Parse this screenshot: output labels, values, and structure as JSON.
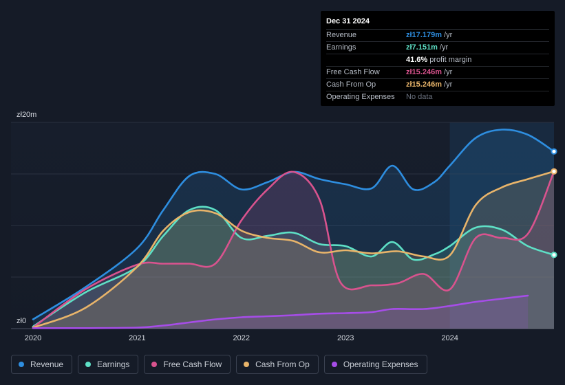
{
  "chart_data": {
    "type": "area",
    "y_axis": {
      "top_label": "zł20m",
      "bottom_label": "zł0",
      "ylim": [
        0,
        20
      ]
    },
    "x_axis": {
      "ticks": [
        "2020",
        "2021",
        "2022",
        "2023",
        "2024"
      ],
      "xlim": [
        2020.0,
        2025.0
      ]
    },
    "highlight_from": 2024.0,
    "series": [
      {
        "name": "Revenue",
        "color": "#2e8ee0",
        "points": [
          [
            2020.0,
            0.9
          ],
          [
            2020.5,
            4.0
          ],
          [
            2021.0,
            7.8
          ],
          [
            2021.25,
            11.5
          ],
          [
            2021.5,
            14.8
          ],
          [
            2021.75,
            15.0
          ],
          [
            2022.0,
            13.5
          ],
          [
            2022.25,
            14.2
          ],
          [
            2022.5,
            15.2
          ],
          [
            2022.75,
            14.5
          ],
          [
            2023.0,
            14.0
          ],
          [
            2023.25,
            13.6
          ],
          [
            2023.45,
            15.8
          ],
          [
            2023.65,
            13.5
          ],
          [
            2023.85,
            14.2
          ],
          [
            2024.0,
            15.8
          ],
          [
            2024.25,
            18.5
          ],
          [
            2024.5,
            19.3
          ],
          [
            2024.75,
            18.8
          ],
          [
            2025.0,
            17.179
          ]
        ]
      },
      {
        "name": "Earnings",
        "color": "#5ee0c6",
        "points": [
          [
            2020.0,
            0.2
          ],
          [
            2020.5,
            3.5
          ],
          [
            2021.0,
            6.0
          ],
          [
            2021.25,
            9.0
          ],
          [
            2021.5,
            11.5
          ],
          [
            2021.75,
            11.5
          ],
          [
            2022.0,
            8.8
          ],
          [
            2022.25,
            9.0
          ],
          [
            2022.5,
            9.3
          ],
          [
            2022.75,
            8.2
          ],
          [
            2023.0,
            8.0
          ],
          [
            2023.25,
            7.0
          ],
          [
            2023.45,
            8.4
          ],
          [
            2023.65,
            6.7
          ],
          [
            2023.85,
            7.2
          ],
          [
            2024.0,
            8.0
          ],
          [
            2024.25,
            9.8
          ],
          [
            2024.5,
            9.6
          ],
          [
            2024.75,
            8.0
          ],
          [
            2025.0,
            7.151
          ]
        ]
      },
      {
        "name": "Free Cash Flow",
        "color": "#d9538e",
        "points": [
          [
            2020.0,
            0.1
          ],
          [
            2020.5,
            3.8
          ],
          [
            2021.0,
            6.2
          ],
          [
            2021.25,
            6.3
          ],
          [
            2021.5,
            6.3
          ],
          [
            2021.75,
            6.3
          ],
          [
            2022.0,
            10.5
          ],
          [
            2022.25,
            13.5
          ],
          [
            2022.5,
            15.2
          ],
          [
            2022.75,
            12.5
          ],
          [
            2022.95,
            4.5
          ],
          [
            2023.25,
            4.2
          ],
          [
            2023.5,
            4.4
          ],
          [
            2023.75,
            5.3
          ],
          [
            2024.0,
            3.8
          ],
          [
            2024.25,
            8.8
          ],
          [
            2024.5,
            8.8
          ],
          [
            2024.75,
            9.2
          ],
          [
            2025.0,
            15.246
          ]
        ]
      },
      {
        "name": "Cash From Op",
        "color": "#e8b46a",
        "points": [
          [
            2020.0,
            0.1
          ],
          [
            2020.5,
            2.0
          ],
          [
            2021.0,
            6.0
          ],
          [
            2021.25,
            9.5
          ],
          [
            2021.5,
            11.3
          ],
          [
            2021.75,
            11.2
          ],
          [
            2022.0,
            9.5
          ],
          [
            2022.25,
            8.8
          ],
          [
            2022.5,
            8.5
          ],
          [
            2022.75,
            7.4
          ],
          [
            2023.0,
            7.6
          ],
          [
            2023.25,
            7.3
          ],
          [
            2023.5,
            7.5
          ],
          [
            2023.75,
            7.0
          ],
          [
            2024.0,
            7.1
          ],
          [
            2024.25,
            12.0
          ],
          [
            2024.5,
            13.7
          ],
          [
            2024.75,
            14.5
          ],
          [
            2025.0,
            15.246
          ]
        ]
      },
      {
        "name": "Operating Expenses",
        "color": "#a64de8",
        "points": [
          [
            2020.0,
            0.05
          ],
          [
            2020.5,
            0.05
          ],
          [
            2021.0,
            0.1
          ],
          [
            2021.25,
            0.3
          ],
          [
            2021.5,
            0.6
          ],
          [
            2021.75,
            0.9
          ],
          [
            2022.0,
            1.1
          ],
          [
            2022.25,
            1.2
          ],
          [
            2022.5,
            1.3
          ],
          [
            2022.75,
            1.45
          ],
          [
            2023.0,
            1.5
          ],
          [
            2023.25,
            1.6
          ],
          [
            2023.45,
            1.9
          ],
          [
            2023.75,
            1.9
          ],
          [
            2024.0,
            2.2
          ],
          [
            2024.25,
            2.6
          ],
          [
            2024.5,
            2.9
          ],
          [
            2024.75,
            3.2
          ]
        ]
      }
    ]
  },
  "tooltip": {
    "date": "Dec 31 2024",
    "rows": [
      {
        "label": "Revenue",
        "value": "zł17.179m",
        "unit": " /yr",
        "color": "#2e8ee0"
      },
      {
        "label": "Earnings",
        "value": "zł7.151m",
        "unit": " /yr",
        "color": "#5ee0c6"
      },
      {
        "label": "",
        "value": "41.6%",
        "unit": " profit margin",
        "color": "#ffffff"
      },
      {
        "label": "Free Cash Flow",
        "value": "zł15.246m",
        "unit": " /yr",
        "color": "#d9538e"
      },
      {
        "label": "Cash From Op",
        "value": "zł15.246m",
        "unit": " /yr",
        "color": "#e8b46a"
      },
      {
        "label": "Operating Expenses",
        "value": "No data",
        "unit": "",
        "color": "#6b7280"
      }
    ]
  },
  "legend": [
    {
      "label": "Revenue",
      "color": "#2e8ee0"
    },
    {
      "label": "Earnings",
      "color": "#5ee0c6"
    },
    {
      "label": "Free Cash Flow",
      "color": "#d9538e"
    },
    {
      "label": "Cash From Op",
      "color": "#e8b46a"
    },
    {
      "label": "Operating Expenses",
      "color": "#a64de8"
    }
  ]
}
